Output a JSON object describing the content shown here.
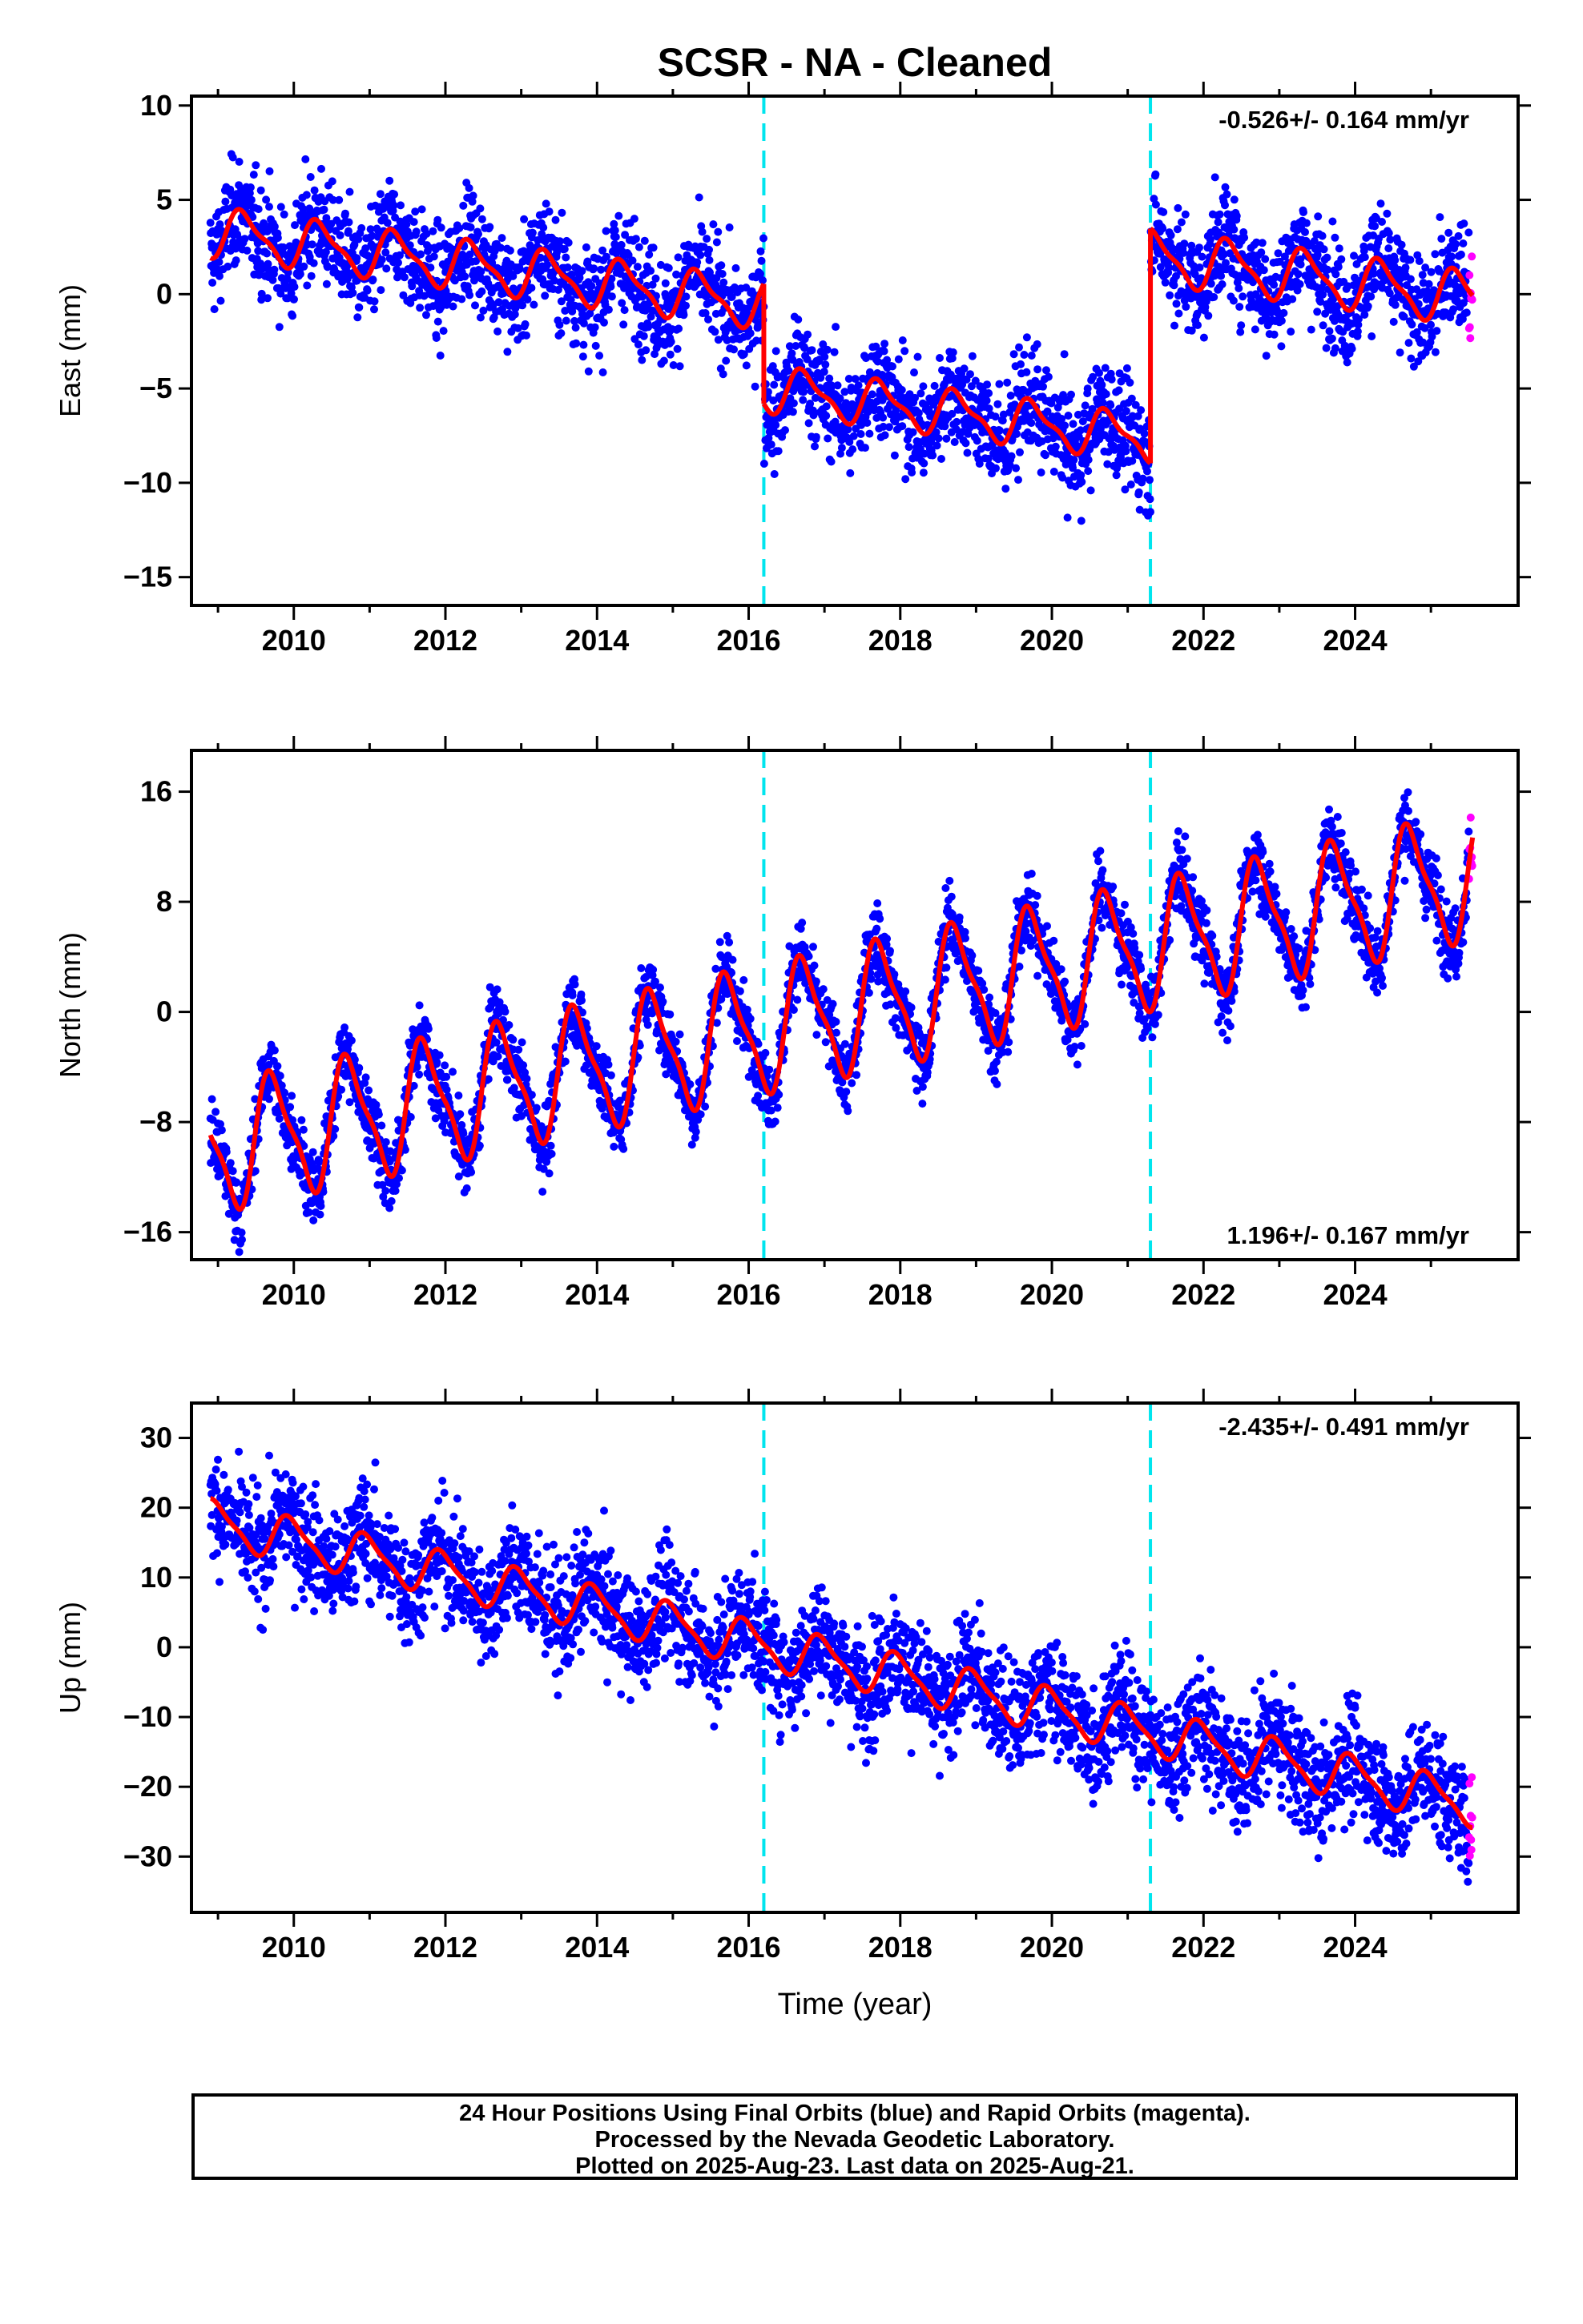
{
  "title": "SCSR  - NA - Cleaned",
  "xlabel": "Time (year)",
  "x_ticks": [
    2010,
    2012,
    2014,
    2016,
    2018,
    2020,
    2022,
    2024
  ],
  "caption": {
    "line1": "24 Hour Positions Using Final Orbits (blue) and Rapid Orbits (magenta).",
    "line2": "Processed by the Nevada Geodetic Laboratory.",
    "line3": "Plotted on 2025-Aug-23. Last data on 2025-Aug-21."
  },
  "colors": {
    "final_orbits": "#0000ff",
    "rapid_orbits": "#ff00ff",
    "model": "#ff0000",
    "steps": "#00e5ee"
  },
  "chart_data": [
    {
      "type": "scatter",
      "component": "east",
      "ylabel": "East (mm)",
      "xlim": [
        2008.65,
        2026.15
      ],
      "ylim": [
        -16.5,
        10.5
      ],
      "y_ticks": [
        -15,
        -10,
        -5,
        0,
        5,
        10
      ],
      "rate_text": "-0.526+/- 0.164 mm/yr",
      "rate_position": "top-right",
      "step_lines": [
        2016.2,
        2021.3
      ],
      "data_range": [
        2008.9,
        2025.55
      ],
      "rapid_start": 2025.5,
      "series": [
        {
          "name": "Final Orbits (blue)",
          "style": "dots"
        },
        {
          "name": "Rapid Orbits (magenta)",
          "style": "dots"
        },
        {
          "style": "line",
          "segments": [
            {
              "start": 2008.9,
              "end": 2016.2,
              "offset": 3.3,
              "rate": -0.526,
              "ann": 1.2,
              "semi": 0.4,
              "phase": 0.1
            },
            {
              "start": 2016.2,
              "end": 2021.3,
              "offset": -5.0,
              "rate": -0.526,
              "ann": 1.1,
              "semi": 0.4,
              "phase": 0.5
            },
            {
              "start": 2021.3,
              "end": 2025.55,
              "offset": 2.0,
              "rate": -0.526,
              "ann": 1.3,
              "semi": 0.4,
              "phase": 0.1
            }
          ]
        }
      ],
      "scatter_sigma": 1.4
    },
    {
      "type": "scatter",
      "component": "north",
      "ylabel": "North (mm)",
      "xlim": [
        2008.65,
        2026.15
      ],
      "ylim": [
        -18,
        19
      ],
      "y_ticks": [
        -16,
        -8,
        0,
        8,
        16
      ],
      "rate_text": "1.196+/- 0.167 mm/yr",
      "rate_position": "bottom-right",
      "step_lines": [
        2016.2,
        2021.3
      ],
      "data_range": [
        2008.9,
        2025.55
      ],
      "rapid_start": 2025.5,
      "series": [
        {
          "name": "Final Orbits (blue)",
          "style": "dots"
        },
        {
          "name": "Rapid Orbits (magenta)",
          "style": "dots"
        },
        {
          "style": "line",
          "segments": [
            {
              "start": 2008.9,
              "end": 2025.55,
              "offset": -10.0,
              "rate": 1.196,
              "ann": 4.3,
              "semi": 1.2,
              "phase": 0.48
            }
          ]
        }
      ],
      "scatter_sigma": 1.3
    },
    {
      "type": "scatter",
      "component": "up",
      "ylabel": "Up (mm)",
      "xlim": [
        2008.65,
        2026.15
      ],
      "ylim": [
        -38,
        35
      ],
      "y_ticks": [
        -30,
        -20,
        -10,
        0,
        10,
        20,
        30
      ],
      "rate_text": "-2.435+/- 0.491 mm/yr",
      "rate_position": "top-right",
      "step_lines": [
        2016.2,
        2021.3
      ],
      "data_range": [
        2008.9,
        2025.55
      ],
      "rapid_start": 2025.5,
      "series": [
        {
          "name": "Final Orbits (blue)",
          "style": "dots"
        },
        {
          "name": "Rapid Orbits (magenta)",
          "style": "dots"
        },
        {
          "style": "line",
          "segments": [
            {
              "start": 2008.9,
              "end": 2025.55,
              "offset": 18.0,
              "rate": -2.435,
              "ann": 3.0,
              "semi": 0.8,
              "phase": 0.72
            }
          ]
        }
      ],
      "scatter_sigma": 4.0
    }
  ]
}
